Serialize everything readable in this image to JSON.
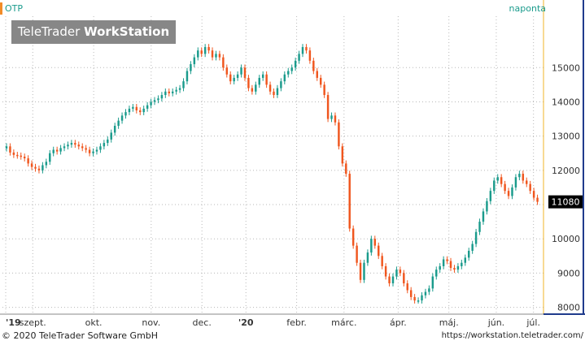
{
  "header": {
    "ticker": "OTP",
    "period": "naponta"
  },
  "logo": {
    "brand": "TeleTrader",
    "product": "WorkStation"
  },
  "footer": {
    "copyright": "© 2020 TeleTrader Software GmbH",
    "url": "https://workstation.teletrader.com/"
  },
  "colors": {
    "up": "#1a9b8c",
    "down": "#f0561e",
    "current_price_bg": "#000000",
    "axis_line": "#f0b429",
    "border": "#1f3b8c"
  },
  "chart_data": {
    "type": "candlestick",
    "title": "OTP",
    "xlabel": "",
    "ylabel": "",
    "ylim": [
      7800,
      16500
    ],
    "y_ticks": [
      8000,
      9000,
      10000,
      11000,
      12000,
      13000,
      14000,
      15000
    ],
    "x_ticks": [
      "'19",
      "szept.",
      "okt.",
      "nov.",
      "dec.",
      "'20",
      "febr.",
      "márc.",
      "ápr.",
      "máj.",
      "jún.",
      "júl."
    ],
    "current_price": "11080",
    "grid": true,
    "series": [
      {
        "name": "OTP",
        "close": [
          12700,
          12520,
          12450,
          12430,
          12400,
          12350,
          12200,
          12100,
          12050,
          12000,
          12150,
          12250,
          12500,
          12600,
          12550,
          12650,
          12700,
          12750,
          12800,
          12750,
          12700,
          12650,
          12600,
          12500,
          12550,
          12600,
          12700,
          12800,
          12900,
          13100,
          13300,
          13450,
          13600,
          13700,
          13800,
          13850,
          13750,
          13700,
          13800,
          13900,
          14000,
          14050,
          14100,
          14200,
          14300,
          14250,
          14300,
          14350,
          14400,
          14600,
          14900,
          15100,
          15300,
          15500,
          15400,
          15600,
          15500,
          15300,
          15400,
          15300,
          15000,
          14800,
          14600,
          14700,
          14800,
          15000,
          14700,
          14400,
          14300,
          14500,
          14700,
          14800,
          14500,
          14300,
          14200,
          14400,
          14600,
          14800,
          14900,
          15000,
          15200,
          15400,
          15600,
          15500,
          15200,
          14900,
          14700,
          14500,
          14200,
          13500,
          13600,
          13400,
          12700,
          12200,
          11900,
          10300,
          9800,
          9300,
          8800,
          9300,
          9600,
          10000,
          9800,
          9500,
          9200,
          8900,
          8700,
          8900,
          9100,
          9000,
          8700,
          8500,
          8300,
          8200,
          8200,
          8350,
          8450,
          8550,
          8900,
          9100,
          9200,
          9400,
          9350,
          9150,
          9100,
          9200,
          9300,
          9450,
          9650,
          9850,
          10200,
          10500,
          10800,
          11100,
          11400,
          11700,
          11800,
          11600,
          11400,
          11250,
          11500,
          11800,
          11900,
          11700,
          11600,
          11400,
          11200,
          11080
        ]
      }
    ]
  }
}
